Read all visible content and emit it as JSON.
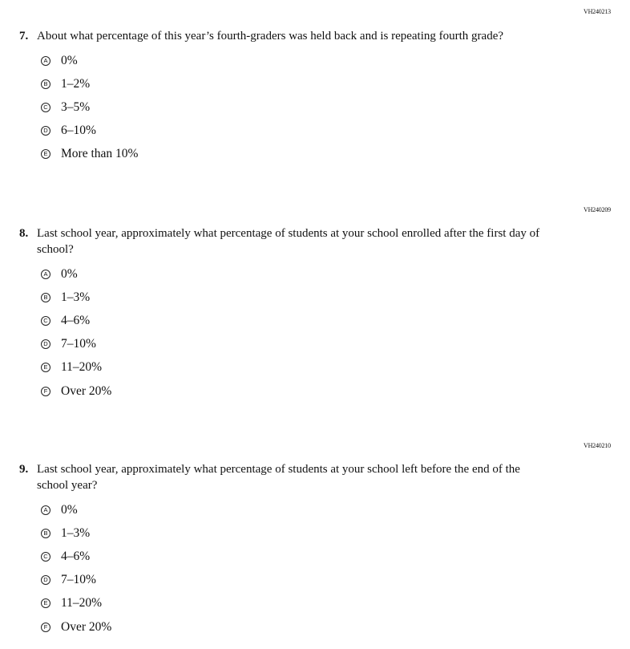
{
  "questions": [
    {
      "code": "VH240213",
      "number": "7.",
      "text": "About what percentage of this year’s fourth-graders was held back and is repeating fourth grade?",
      "options": [
        {
          "letter": "A",
          "label": "0%"
        },
        {
          "letter": "B",
          "label": "1–2%"
        },
        {
          "letter": "C",
          "label": "3–5%"
        },
        {
          "letter": "D",
          "label": "6–10%"
        },
        {
          "letter": "E",
          "label": "More than 10%"
        }
      ]
    },
    {
      "code": "VH240209",
      "number": "8.",
      "text": "Last school year, approximately what percentage of students at your school enrolled after the first day of school?",
      "options": [
        {
          "letter": "A",
          "label": "0%"
        },
        {
          "letter": "B",
          "label": "1–3%"
        },
        {
          "letter": "C",
          "label": "4–6%"
        },
        {
          "letter": "D",
          "label": "7–10%"
        },
        {
          "letter": "E",
          "label": "11–20%"
        },
        {
          "letter": "F",
          "label": "Over 20%"
        }
      ]
    },
    {
      "code": "VH240210",
      "number": "9.",
      "text": "Last school year, approximately what percentage of students at your school left before the end of the school year?",
      "options": [
        {
          "letter": "A",
          "label": "0%"
        },
        {
          "letter": "B",
          "label": "1–3%"
        },
        {
          "letter": "C",
          "label": "4–6%"
        },
        {
          "letter": "D",
          "label": "7–10%"
        },
        {
          "letter": "E",
          "label": "11–20%"
        },
        {
          "letter": "F",
          "label": "Over 20%"
        }
      ]
    }
  ]
}
